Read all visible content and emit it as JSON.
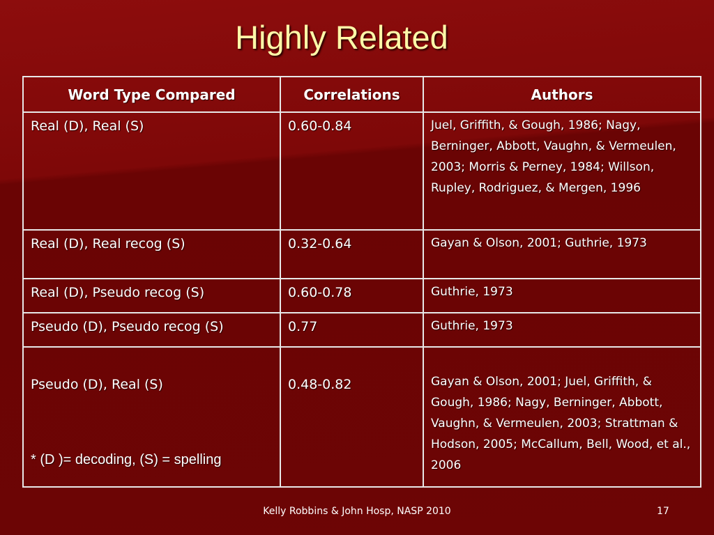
{
  "slide": {
    "title": "Highly Related",
    "footer": "Kelly Robbins & John Hosp,  NASP 2010",
    "page_number": "17"
  },
  "table": {
    "headers": [
      "Word Type Compared",
      "Correlations",
      "Authors"
    ],
    "rows": [
      {
        "type": "Real (D), Real (S)",
        "corr": "0.60-0.84",
        "authors": "Juel, Griffith, & Gough, 1986; Nagy, Berninger, Abbott, Vaughn, & Vermeulen, 2003; Morris & Perney, 1984; Willson, Rupley, Rodriguez, & Mergen, 1996"
      },
      {
        "type": "Real (D), Real recog (S)",
        "corr": "0.32-0.64",
        "authors": "Gayan & Olson, 2001; Guthrie, 1973"
      },
      {
        "type": "Real (D), Pseudo recog (S)",
        "corr": "0.60-0.78",
        "authors": "Guthrie, 1973"
      },
      {
        "type": "Pseudo (D), Pseudo recog (S)",
        "corr": "0.77",
        "authors": "Guthrie, 1973"
      },
      {
        "type": "Pseudo (D), Real (S)",
        "corr": "0.48-0.82",
        "authors": "Gayan & Olson, 2001; Juel, Griffith, & Gough, 1986; Nagy, Berninger, Abbott, Vaughn, & Vermeulen, 2003; Strattman & Hodson, 2005; McCallum, Bell, Wood, et al., 2006"
      }
    ],
    "note": "* (D )= decoding, (S) = spelling"
  },
  "colors": {
    "background": "#6e0606",
    "title": "#fff8a8",
    "text": "#ffffff",
    "border": "#e8e8e8"
  }
}
